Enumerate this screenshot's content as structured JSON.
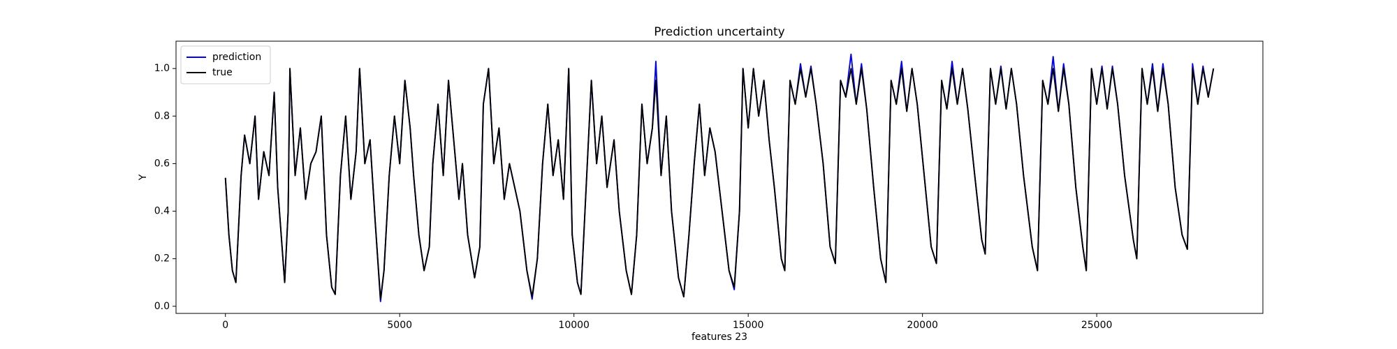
{
  "chart_data": {
    "type": "line",
    "title": "Prediction uncertainty",
    "xlabel": "features 23",
    "ylabel": "Y",
    "legend": "upper left",
    "grid": false,
    "xlim": [
      -1417.5,
      29767.5
    ],
    "xticks": [
      0,
      5000,
      10000,
      15000,
      20000,
      25000
    ],
    "ylim": [
      -0.03,
      1.115
    ],
    "yticks": [
      {
        "value": 0,
        "label": "0.0"
      },
      0.2,
      0.4,
      0.6,
      0.8,
      {
        "value": 1,
        "label": "1.0"
      }
    ],
    "x": [
      0,
      100,
      200,
      300,
      450,
      550,
      700,
      850,
      950,
      1100,
      1250,
      1400,
      1500,
      1600,
      1700,
      1800,
      1850,
      2000,
      2150,
      2300,
      2450,
      2600,
      2750,
      2900,
      3050,
      3150,
      3300,
      3450,
      3600,
      3750,
      3850,
      4000,
      4150,
      4300,
      4450,
      4550,
      4700,
      4850,
      5000,
      5150,
      5300,
      5400,
      5550,
      5700,
      5850,
      5950,
      6100,
      6250,
      6400,
      6550,
      6700,
      6800,
      6950,
      7150,
      7300,
      7400,
      7550,
      7700,
      7850,
      8000,
      8150,
      8300,
      8450,
      8650,
      8800,
      8950,
      9100,
      9250,
      9400,
      9550,
      9700,
      9850,
      9950,
      10100,
      10200,
      10350,
      10500,
      10650,
      10800,
      10950,
      11150,
      11300,
      11500,
      11650,
      11800,
      11950,
      12100,
      12250,
      12350,
      12500,
      12650,
      12800,
      13000,
      13150,
      13300,
      13450,
      13600,
      13750,
      13900,
      14050,
      14250,
      14450,
      14600,
      14750,
      14850,
      15000,
      15150,
      15300,
      15450,
      15600,
      15750,
      15950,
      16050,
      16200,
      16350,
      16500,
      16650,
      16800,
      16950,
      17150,
      17350,
      17500,
      17650,
      17800,
      17950,
      18100,
      18250,
      18400,
      18600,
      18800,
      18950,
      19100,
      19250,
      19400,
      19550,
      19700,
      19850,
      20050,
      20250,
      20400,
      20550,
      20700,
      20850,
      21000,
      21150,
      21300,
      21500,
      21700,
      21800,
      21950,
      22100,
      22250,
      22400,
      22550,
      22700,
      22900,
      23150,
      23300,
      23450,
      23600,
      23750,
      23900,
      24050,
      24200,
      24400,
      24600,
      24700,
      24850,
      25000,
      25150,
      25300,
      25450,
      25600,
      25800,
      26050,
      26150,
      26300,
      26450,
      26600,
      26750,
      26900,
      27050,
      27250,
      27450,
      27600,
      27750,
      27900,
      28050,
      28200,
      28350
    ],
    "series": [
      {
        "name": "prediction",
        "color": "#0000ff",
        "values": [
          0.54,
          0.3,
          0.15,
          0.1,
          0.55,
          0.72,
          0.6,
          0.8,
          0.45,
          0.65,
          0.55,
          0.9,
          0.5,
          0.3,
          0.1,
          0.4,
          1.0,
          0.55,
          0.75,
          0.45,
          0.6,
          0.65,
          0.8,
          0.3,
          0.08,
          0.05,
          0.55,
          0.8,
          0.45,
          0.65,
          1.0,
          0.6,
          0.7,
          0.35,
          0.02,
          0.15,
          0.55,
          0.8,
          0.6,
          0.95,
          0.75,
          0.55,
          0.3,
          0.15,
          0.25,
          0.6,
          0.85,
          0.55,
          0.95,
          0.7,
          0.45,
          0.6,
          0.3,
          0.12,
          0.25,
          0.85,
          1.0,
          0.6,
          0.75,
          0.45,
          0.6,
          0.5,
          0.4,
          0.15,
          0.03,
          0.2,
          0.6,
          0.85,
          0.55,
          0.7,
          0.45,
          1.0,
          0.3,
          0.1,
          0.05,
          0.5,
          0.95,
          0.6,
          0.8,
          0.5,
          0.7,
          0.4,
          0.15,
          0.05,
          0.3,
          0.85,
          0.6,
          0.75,
          1.03,
          0.55,
          0.8,
          0.4,
          0.12,
          0.04,
          0.3,
          0.6,
          0.85,
          0.55,
          0.75,
          0.65,
          0.4,
          0.15,
          0.07,
          0.4,
          1.0,
          0.75,
          1.0,
          0.8,
          0.95,
          0.7,
          0.5,
          0.2,
          0.15,
          0.95,
          0.85,
          1.02,
          0.88,
          1.01,
          0.85,
          0.6,
          0.25,
          0.18,
          0.95,
          0.88,
          1.06,
          0.85,
          1.02,
          0.83,
          0.5,
          0.2,
          0.1,
          0.95,
          0.85,
          1.03,
          0.82,
          1.0,
          0.85,
          0.55,
          0.25,
          0.18,
          0.95,
          0.83,
          1.03,
          0.85,
          1.0,
          0.83,
          0.55,
          0.28,
          0.22,
          1.0,
          0.85,
          1.01,
          0.83,
          1.0,
          0.85,
          0.55,
          0.25,
          0.15,
          0.95,
          0.85,
          1.05,
          0.82,
          1.02,
          0.85,
          0.5,
          0.25,
          0.15,
          1.0,
          0.85,
          1.01,
          0.83,
          1.01,
          0.85,
          0.55,
          0.28,
          0.2,
          1.0,
          0.85,
          1.02,
          0.82,
          1.02,
          0.85,
          0.5,
          0.3,
          0.24,
          1.02,
          0.85,
          1.01,
          0.88,
          1.0
        ]
      },
      {
        "name": "true",
        "color": "#000000",
        "values": [
          0.54,
          0.3,
          0.15,
          0.1,
          0.55,
          0.72,
          0.6,
          0.8,
          0.45,
          0.65,
          0.55,
          0.9,
          0.5,
          0.3,
          0.1,
          0.4,
          1.0,
          0.55,
          0.75,
          0.45,
          0.6,
          0.65,
          0.8,
          0.3,
          0.08,
          0.05,
          0.55,
          0.8,
          0.45,
          0.65,
          1.0,
          0.6,
          0.7,
          0.35,
          0.03,
          0.15,
          0.55,
          0.8,
          0.6,
          0.95,
          0.75,
          0.55,
          0.3,
          0.15,
          0.25,
          0.6,
          0.85,
          0.55,
          0.95,
          0.7,
          0.45,
          0.6,
          0.3,
          0.12,
          0.25,
          0.85,
          1.0,
          0.6,
          0.75,
          0.45,
          0.6,
          0.5,
          0.4,
          0.15,
          0.04,
          0.2,
          0.6,
          0.85,
          0.55,
          0.7,
          0.45,
          1.0,
          0.3,
          0.1,
          0.05,
          0.5,
          0.95,
          0.6,
          0.8,
          0.5,
          0.7,
          0.4,
          0.15,
          0.05,
          0.3,
          0.85,
          0.6,
          0.75,
          0.95,
          0.55,
          0.8,
          0.4,
          0.12,
          0.04,
          0.3,
          0.6,
          0.85,
          0.55,
          0.75,
          0.65,
          0.4,
          0.15,
          0.08,
          0.4,
          1.0,
          0.75,
          1.0,
          0.8,
          0.95,
          0.7,
          0.5,
          0.2,
          0.15,
          0.95,
          0.85,
          1.0,
          0.88,
          1.0,
          0.85,
          0.6,
          0.25,
          0.18,
          0.95,
          0.88,
          1.0,
          0.85,
          1.0,
          0.83,
          0.5,
          0.2,
          0.1,
          0.95,
          0.85,
          1.0,
          0.82,
          1.0,
          0.85,
          0.55,
          0.25,
          0.18,
          0.95,
          0.83,
          1.0,
          0.85,
          1.0,
          0.83,
          0.55,
          0.28,
          0.22,
          1.0,
          0.85,
          1.0,
          0.83,
          1.0,
          0.85,
          0.55,
          0.25,
          0.15,
          0.95,
          0.85,
          1.0,
          0.82,
          1.0,
          0.85,
          0.5,
          0.25,
          0.15,
          1.0,
          0.85,
          1.0,
          0.83,
          1.0,
          0.85,
          0.55,
          0.28,
          0.2,
          1.0,
          0.85,
          1.0,
          0.82,
          1.0,
          0.85,
          0.5,
          0.3,
          0.24,
          1.0,
          0.85,
          1.0,
          0.88,
          1.0
        ]
      }
    ]
  }
}
